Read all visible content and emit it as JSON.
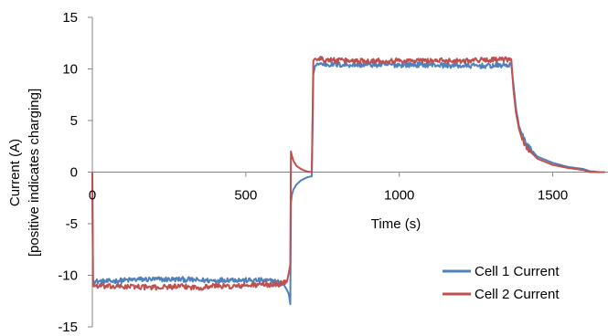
{
  "chart_data": {
    "type": "line",
    "title": "",
    "xlabel": "Time (s)",
    "ylabel_lines": [
      "Current (A)",
      "[positive indicates charging]"
    ],
    "xlim": [
      0,
      1680
    ],
    "ylim": [
      -15,
      15
    ],
    "x_ticks": [
      0,
      500,
      1000,
      1500
    ],
    "y_ticks": [
      -15,
      -10,
      -5,
      0,
      5,
      10,
      15
    ],
    "x_tick_labels": [
      "0",
      "500",
      "1000",
      "1500"
    ],
    "y_tick_labels": [
      "-15",
      "-10",
      "-5",
      "0",
      "5",
      "10",
      "15"
    ],
    "grid": false,
    "legend_position": "bottom-right",
    "series": [
      {
        "name": "Cell 1 Current",
        "color": "#4F81BD",
        "x": [
          0,
          2,
          5,
          50,
          100,
          150,
          200,
          250,
          300,
          350,
          400,
          450,
          500,
          550,
          600,
          620,
          630,
          640,
          645,
          647,
          650,
          655,
          665,
          680,
          700,
          715,
          720,
          725,
          730,
          800,
          900,
          1000,
          1100,
          1200,
          1300,
          1365,
          1372,
          1380,
          1390,
          1400,
          1420,
          1450,
          1500,
          1550,
          1600,
          1610,
          1620,
          1650,
          1670
        ],
        "y": [
          0,
          -10.3,
          -10.6,
          -10.6,
          -10.5,
          -10.4,
          -10.4,
          -10.4,
          -10.4,
          -10.5,
          -10.5,
          -10.4,
          -10.5,
          -10.5,
          -10.6,
          -10.8,
          -11.2,
          -11.8,
          -12.8,
          -3.0,
          -2.2,
          -1.7,
          -1.2,
          -0.8,
          -0.5,
          -0.4,
          9.5,
          10.2,
          10.5,
          10.4,
          10.4,
          10.4,
          10.4,
          10.3,
          10.3,
          10.4,
          8.5,
          6.2,
          4.5,
          3.6,
          2.5,
          1.5,
          0.9,
          0.5,
          0.3,
          0.2,
          0.1,
          0.0,
          0.0
        ]
      },
      {
        "name": "Cell 2 Current",
        "color": "#C0504D",
        "x": [
          0,
          2,
          5,
          50,
          100,
          150,
          200,
          250,
          300,
          350,
          400,
          450,
          500,
          550,
          600,
          620,
          635,
          645,
          647,
          650,
          655,
          665,
          680,
          700,
          715,
          720,
          725,
          730,
          800,
          900,
          1000,
          1100,
          1200,
          1300,
          1365,
          1372,
          1380,
          1390,
          1400,
          1420,
          1450,
          1500,
          1550,
          1600,
          1610,
          1620,
          1650,
          1670
        ],
        "y": [
          0,
          -11.0,
          -11.0,
          -11.1,
          -11.1,
          -11.1,
          -11.2,
          -11.1,
          -11.1,
          -11.2,
          -11.0,
          -11.1,
          -11.0,
          -10.9,
          -10.9,
          -10.8,
          -10.5,
          -9.0,
          2.0,
          1.6,
          1.1,
          0.6,
          0.3,
          0.05,
          0.0,
          10.8,
          11.0,
          11.0,
          10.8,
          10.8,
          10.8,
          10.8,
          10.8,
          10.9,
          10.9,
          8.0,
          5.8,
          4.2,
          3.2,
          2.2,
          1.3,
          0.7,
          0.4,
          0.2,
          0.1,
          0.0,
          0.0,
          0.0
        ]
      }
    ]
  }
}
